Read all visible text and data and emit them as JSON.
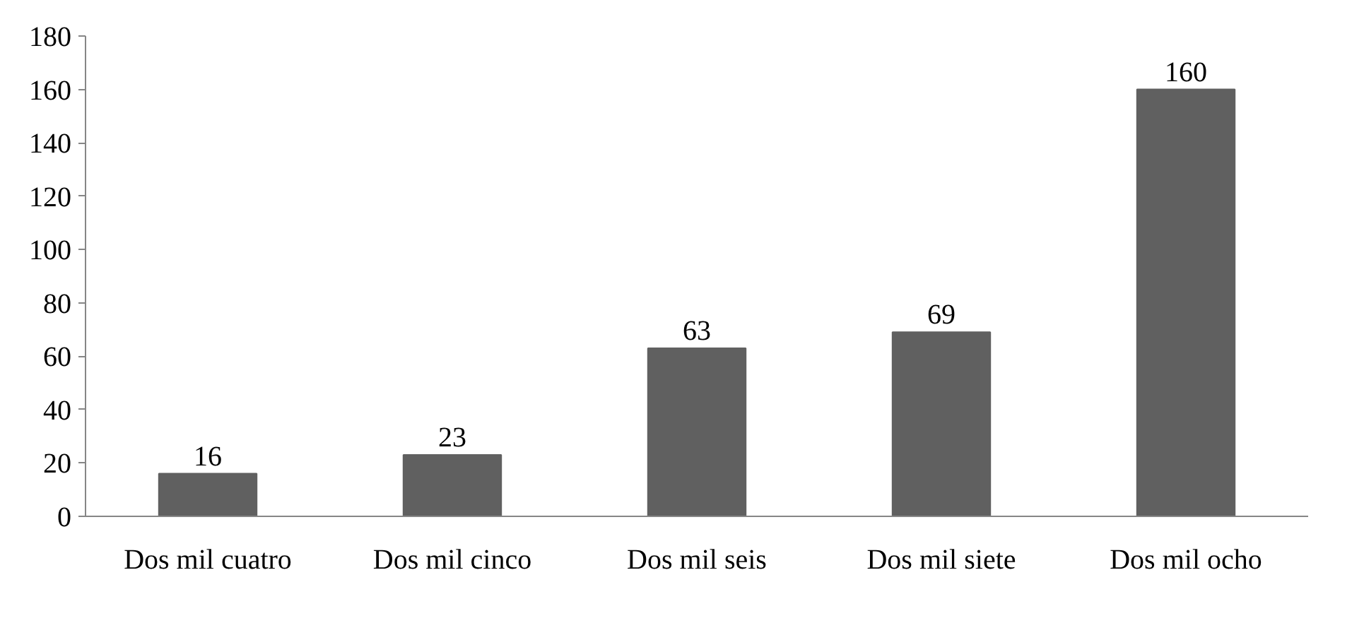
{
  "chart_data": {
    "type": "bar",
    "categories": [
      "Dos mil cuatro",
      "Dos mil cinco",
      "Dos mil seis",
      "Dos mil siete",
      "Dos mil ocho"
    ],
    "values": [
      16,
      23,
      63,
      69,
      160
    ],
    "color": "#606060",
    "ylim": [
      0,
      180
    ],
    "yticks": [
      0,
      20,
      40,
      60,
      80,
      100,
      120,
      140,
      160,
      180
    ],
    "grid": false,
    "data_labels": true
  }
}
